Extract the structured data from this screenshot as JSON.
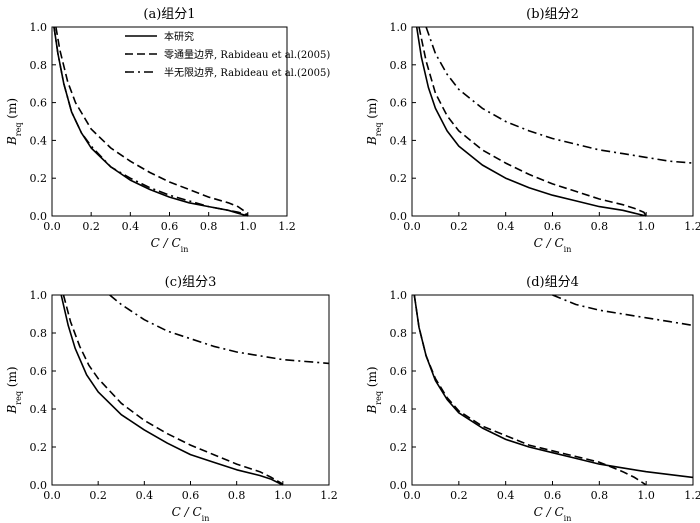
{
  "chart_data": [
    {
      "type": "line",
      "title": "(a)组分1",
      "xlabel": "C / C_in",
      "ylabel": "B_req (m)",
      "xlim": [
        0,
        1.2
      ],
      "ylim": [
        0,
        1.0
      ],
      "xticks": [
        "0.0",
        "0.2",
        "0.4",
        "0.6",
        "0.8",
        "1.0",
        "1.2"
      ],
      "yticks": [
        "0.0",
        "0.2",
        "0.4",
        "0.6",
        "0.8",
        "1.0"
      ],
      "legend": {
        "position": "top-right",
        "entries": [
          "本研究",
          "零通量边界, Rabideau et al.(2005)",
          "半无限边界, Rabideau et al.(2005)"
        ]
      },
      "series": [
        {
          "name": "本研究",
          "style": "solid",
          "x": [
            0.01,
            0.03,
            0.06,
            0.1,
            0.15,
            0.2,
            0.3,
            0.4,
            0.5,
            0.6,
            0.7,
            0.8,
            0.9,
            0.95,
            1.0
          ],
          "y": [
            1.0,
            0.86,
            0.7,
            0.55,
            0.44,
            0.36,
            0.26,
            0.19,
            0.14,
            0.1,
            0.07,
            0.05,
            0.03,
            0.015,
            0.0
          ]
        },
        {
          "name": "零通量边界, Rabideau et al.(2005)",
          "style": "dash",
          "x": [
            0.02,
            0.04,
            0.08,
            0.12,
            0.2,
            0.3,
            0.4,
            0.5,
            0.6,
            0.7,
            0.8,
            0.9,
            0.95,
            0.99,
            1.0
          ],
          "y": [
            1.0,
            0.88,
            0.71,
            0.6,
            0.46,
            0.36,
            0.29,
            0.23,
            0.18,
            0.14,
            0.1,
            0.07,
            0.05,
            0.02,
            0.0
          ]
        },
        {
          "name": "半无限边界, Rabideau et al.(2005)",
          "style": "dashdot",
          "x": [
            0.01,
            0.03,
            0.06,
            0.1,
            0.15,
            0.2,
            0.3,
            0.4,
            0.5,
            0.6,
            0.7,
            0.8,
            0.9,
            0.95,
            1.0
          ],
          "y": [
            1.0,
            0.86,
            0.7,
            0.55,
            0.44,
            0.37,
            0.26,
            0.2,
            0.15,
            0.11,
            0.08,
            0.05,
            0.03,
            0.02,
            0.005
          ]
        }
      ]
    },
    {
      "type": "line",
      "title": "(b)组分2",
      "xlabel": "C / C_in",
      "ylabel": "B_req (m)",
      "xlim": [
        0,
        1.2
      ],
      "ylim": [
        0,
        1.0
      ],
      "xticks": [
        "0.0",
        "0.2",
        "0.4",
        "0.6",
        "0.8",
        "1.0",
        "1.2"
      ],
      "yticks": [
        "0.0",
        "0.2",
        "0.4",
        "0.6",
        "0.8",
        "1.0"
      ],
      "series": [
        {
          "style": "solid",
          "x": [
            0.02,
            0.04,
            0.07,
            0.1,
            0.15,
            0.2,
            0.3,
            0.4,
            0.5,
            0.6,
            0.7,
            0.8,
            0.9,
            0.95,
            1.0
          ],
          "y": [
            1.0,
            0.84,
            0.68,
            0.57,
            0.45,
            0.37,
            0.27,
            0.2,
            0.15,
            0.11,
            0.08,
            0.05,
            0.03,
            0.015,
            0.0
          ]
        },
        {
          "style": "dash",
          "x": [
            0.03,
            0.06,
            0.1,
            0.15,
            0.2,
            0.3,
            0.4,
            0.5,
            0.6,
            0.7,
            0.8,
            0.9,
            0.95,
            0.99,
            1.0
          ],
          "y": [
            1.0,
            0.82,
            0.65,
            0.53,
            0.45,
            0.35,
            0.28,
            0.22,
            0.17,
            0.13,
            0.09,
            0.06,
            0.04,
            0.02,
            0.0
          ]
        },
        {
          "style": "dashdot",
          "x": [
            0.06,
            0.1,
            0.15,
            0.2,
            0.3,
            0.4,
            0.5,
            0.6,
            0.7,
            0.8,
            0.9,
            1.0,
            1.1,
            1.2
          ],
          "y": [
            1.0,
            0.86,
            0.75,
            0.67,
            0.57,
            0.5,
            0.45,
            0.41,
            0.38,
            0.35,
            0.33,
            0.31,
            0.29,
            0.28
          ]
        }
      ]
    },
    {
      "type": "line",
      "title": "(c)组分3",
      "xlabel": "C / C_in",
      "ylabel": "B_req (m)",
      "xlim": [
        0,
        1.2
      ],
      "ylim": [
        0,
        1.0
      ],
      "xticks": [
        "0.0",
        "0.2",
        "0.4",
        "0.6",
        "0.8",
        "1.0",
        "1.2"
      ],
      "yticks": [
        "0.0",
        "0.2",
        "0.4",
        "0.6",
        "0.8",
        "1.0"
      ],
      "series": [
        {
          "style": "solid",
          "x": [
            0.04,
            0.07,
            0.1,
            0.15,
            0.2,
            0.3,
            0.4,
            0.5,
            0.6,
            0.7,
            0.8,
            0.9,
            0.95,
            1.0
          ],
          "y": [
            1.0,
            0.84,
            0.72,
            0.58,
            0.49,
            0.37,
            0.29,
            0.22,
            0.16,
            0.12,
            0.08,
            0.05,
            0.03,
            0.0
          ]
        },
        {
          "style": "dash",
          "x": [
            0.05,
            0.08,
            0.12,
            0.16,
            0.2,
            0.3,
            0.4,
            0.5,
            0.6,
            0.7,
            0.8,
            0.9,
            0.95,
            1.0
          ],
          "y": [
            1.0,
            0.86,
            0.73,
            0.63,
            0.56,
            0.43,
            0.34,
            0.27,
            0.21,
            0.16,
            0.11,
            0.07,
            0.04,
            0.005
          ]
        },
        {
          "style": "dashdot",
          "x": [
            0.25,
            0.3,
            0.35,
            0.4,
            0.5,
            0.6,
            0.7,
            0.8,
            0.9,
            1.0,
            1.1,
            1.2
          ],
          "y": [
            1.0,
            0.95,
            0.91,
            0.87,
            0.81,
            0.77,
            0.73,
            0.7,
            0.68,
            0.66,
            0.65,
            0.64
          ]
        }
      ]
    },
    {
      "type": "line",
      "title": "(d)组分4",
      "xlabel": "C / C_in",
      "ylabel": "B_req (m)",
      "xlim": [
        0,
        1.2
      ],
      "ylim": [
        0,
        1.0
      ],
      "xticks": [
        "0.0",
        "0.2",
        "0.4",
        "0.6",
        "0.8",
        "1.0",
        "1.2"
      ],
      "yticks": [
        "0.0",
        "0.2",
        "0.4",
        "0.6",
        "0.8",
        "1.0"
      ],
      "series": [
        {
          "style": "solid",
          "x": [
            0.01,
            0.03,
            0.06,
            0.1,
            0.15,
            0.2,
            0.3,
            0.4,
            0.5,
            0.6,
            0.7,
            0.8,
            0.9,
            1.0,
            1.1,
            1.2
          ],
          "y": [
            1.0,
            0.83,
            0.68,
            0.55,
            0.45,
            0.38,
            0.3,
            0.24,
            0.2,
            0.17,
            0.14,
            0.11,
            0.09,
            0.07,
            0.055,
            0.04
          ]
        },
        {
          "style": "dash",
          "x": [
            0.01,
            0.03,
            0.06,
            0.1,
            0.15,
            0.2,
            0.3,
            0.4,
            0.5,
            0.6,
            0.7,
            0.8,
            0.9,
            0.95,
            1.0
          ],
          "y": [
            1.0,
            0.83,
            0.68,
            0.56,
            0.46,
            0.39,
            0.31,
            0.26,
            0.21,
            0.18,
            0.15,
            0.12,
            0.07,
            0.04,
            0.0
          ]
        },
        {
          "style": "dashdot",
          "x": [
            0.6,
            0.7,
            0.8,
            0.9,
            1.0,
            1.1,
            1.2
          ],
          "y": [
            1.0,
            0.95,
            0.92,
            0.9,
            0.88,
            0.86,
            0.84
          ]
        }
      ]
    }
  ]
}
